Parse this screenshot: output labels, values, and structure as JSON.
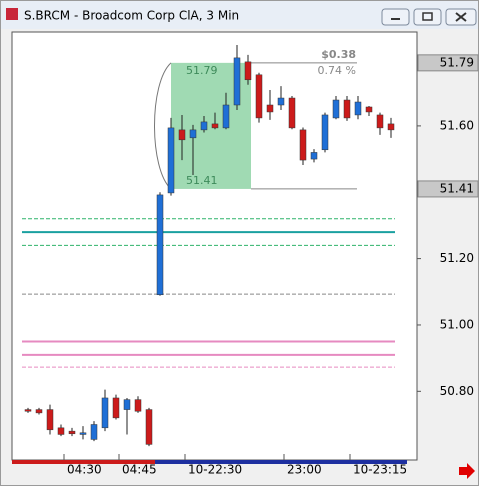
{
  "window": {
    "title": "S.BRCM - Broadcom Corp ClA, 3 Min"
  },
  "chart_data": {
    "type": "candlestick",
    "categories": [
      null,
      null,
      null,
      null,
      "04:30",
      null,
      null,
      null,
      null,
      "04:45",
      null,
      null,
      null,
      null,
      null,
      "10-22:30",
      null,
      null,
      null,
      null,
      null,
      null,
      null,
      null,
      "23:00",
      null,
      null,
      null,
      null,
      null,
      "10-23:15",
      null,
      null,
      null
    ],
    "open": [
      50.745,
      50.745,
      50.745,
      50.69,
      50.68,
      50.67,
      50.655,
      50.69,
      50.78,
      50.745,
      50.775,
      50.745,
      51.091,
      51.398,
      51.588,
      51.564,
      51.588,
      51.606,
      51.594,
      51.663,
      51.793,
      51.754,
      51.663,
      51.663,
      51.684,
      51.588,
      51.5,
      51.528,
      51.624,
      51.678,
      51.633,
      51.657,
      51.633,
      51.606
    ],
    "high": [
      50.75,
      50.75,
      50.76,
      50.7,
      50.69,
      50.695,
      50.71,
      50.805,
      50.79,
      50.78,
      50.785,
      50.75,
      51.4,
      51.624,
      51.633,
      51.603,
      51.63,
      51.64,
      51.7,
      51.844,
      51.814,
      51.76,
      51.708,
      51.72,
      51.69,
      51.595,
      51.53,
      51.64,
      51.69,
      51.69,
      51.69,
      51.66,
      51.64,
      51.624
    ],
    "low": [
      50.735,
      50.73,
      50.67,
      50.665,
      50.665,
      50.655,
      50.65,
      50.68,
      50.715,
      50.67,
      50.735,
      50.635,
      51.088,
      51.39,
      51.497,
      51.452,
      51.58,
      51.59,
      51.59,
      51.648,
      51.724,
      51.61,
      51.618,
      51.648,
      51.59,
      51.482,
      51.49,
      51.52,
      51.62,
      51.615,
      51.62,
      51.63,
      51.573,
      51.564
    ],
    "close": [
      50.74,
      50.735,
      50.684,
      50.67,
      50.672,
      50.675,
      50.7,
      50.78,
      50.72,
      50.775,
      50.74,
      50.64,
      51.392,
      51.594,
      51.558,
      51.588,
      51.612,
      51.594,
      51.663,
      51.805,
      51.739,
      51.624,
      51.642,
      51.684,
      51.594,
      51.497,
      51.52,
      51.633,
      51.678,
      51.624,
      51.672,
      51.642,
      51.594,
      51.588
    ],
    "up_color": "#1f6fd6",
    "down_color": "#cc1b1b",
    "ylim": [
      50.593,
      51.883
    ],
    "yticks": [
      {
        "value": 50.8,
        "label": "50.80"
      },
      {
        "value": 51.0,
        "label": "51.00"
      },
      {
        "value": 51.2,
        "label": "51.20"
      },
      {
        "value": 51.6,
        "label": "51.60"
      }
    ],
    "levels": [
      {
        "value": 51.32,
        "color": "#2fb36a",
        "dashed": true
      },
      {
        "value": 51.28,
        "color": "#1aa0a0",
        "dashed": false
      },
      {
        "value": 51.24,
        "color": "#2fb36a",
        "dashed": true
      },
      {
        "value": 51.093,
        "color": "#888888",
        "dashed": true
      },
      {
        "value": 50.95,
        "color": "#e68ac0",
        "dashed": false
      },
      {
        "value": 50.91,
        "color": "#e68ac0",
        "dashed": false
      },
      {
        "value": 50.873,
        "color": "#e68ac0",
        "dashed": true
      }
    ],
    "measure": {
      "high": 51.79,
      "low": 51.41,
      "change": "$0.38",
      "percent": "0.74 %",
      "color": "#8fd3a6"
    }
  }
}
